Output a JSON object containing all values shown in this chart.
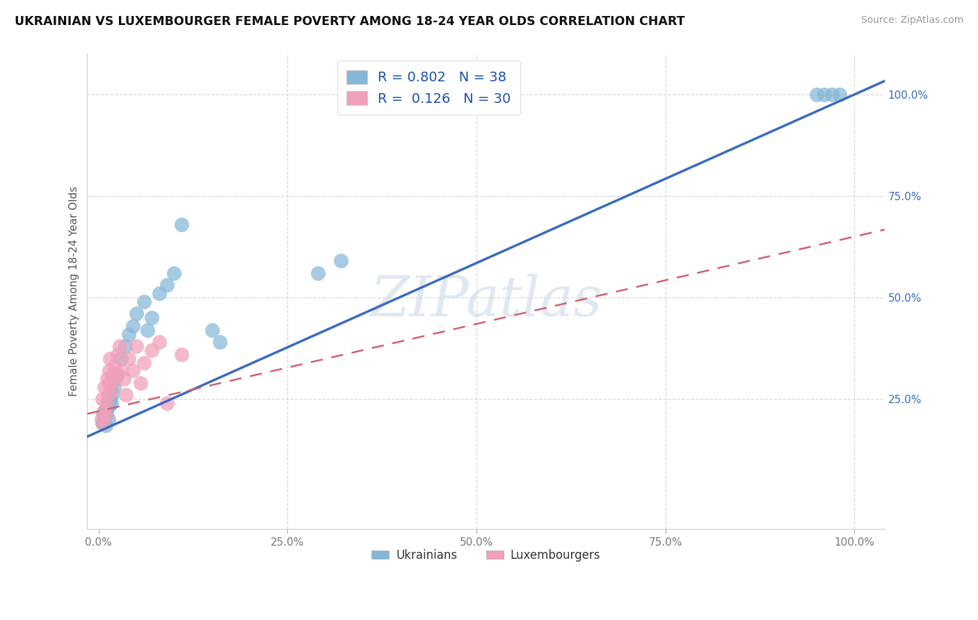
{
  "title": "UKRAINIAN VS LUXEMBOURGER FEMALE POVERTY AMONG 18-24 YEAR OLDS CORRELATION CHART",
  "source": "Source: ZipAtlas.com",
  "ylabel": "Female Poverty Among 18-24 Year Olds",
  "ukr_color": "#85b8d8",
  "lux_color": "#f0a0b8",
  "ukr_line_color": "#3a6abf",
  "lux_line_color": "#d06070",
  "background_color": "#ffffff",
  "grid_color": "#d8d8d8",
  "watermark_text": "ZIPatlas",
  "legend1_label1": "R = 0.802   N = 38",
  "legend1_label2": "R =  0.126   N = 30",
  "legend2_label1": "Ukrainians",
  "legend2_label2": "Luxembourgers",
  "ukr_x": [
    0.005,
    0.006,
    0.007,
    0.008,
    0.009,
    0.01,
    0.01,
    0.012,
    0.012,
    0.013,
    0.014,
    0.015,
    0.016,
    0.017,
    0.018,
    0.02,
    0.022,
    0.025,
    0.03,
    0.035,
    0.04,
    0.045,
    0.05,
    0.06,
    0.065,
    0.07,
    0.08,
    0.09,
    0.1,
    0.11,
    0.15,
    0.16,
    0.29,
    0.32,
    0.95,
    0.96,
    0.97,
    0.98
  ],
  "ukr_y": [
    0.19,
    0.21,
    0.195,
    0.22,
    0.185,
    0.215,
    0.225,
    0.23,
    0.245,
    0.2,
    0.235,
    0.25,
    0.27,
    0.24,
    0.26,
    0.28,
    0.3,
    0.31,
    0.35,
    0.38,
    0.41,
    0.43,
    0.46,
    0.49,
    0.42,
    0.45,
    0.51,
    0.53,
    0.56,
    0.68,
    0.42,
    0.39,
    0.56,
    0.59,
    1.0,
    1.0,
    1.0,
    1.0
  ],
  "lux_x": [
    0.004,
    0.005,
    0.006,
    0.007,
    0.008,
    0.009,
    0.01,
    0.011,
    0.012,
    0.013,
    0.014,
    0.015,
    0.016,
    0.018,
    0.02,
    0.022,
    0.025,
    0.028,
    0.03,
    0.033,
    0.036,
    0.04,
    0.045,
    0.05,
    0.055,
    0.06,
    0.07,
    0.08,
    0.09,
    0.11
  ],
  "lux_y": [
    0.2,
    0.25,
    0.19,
    0.22,
    0.28,
    0.21,
    0.24,
    0.3,
    0.26,
    0.29,
    0.32,
    0.35,
    0.27,
    0.31,
    0.33,
    0.3,
    0.36,
    0.38,
    0.32,
    0.3,
    0.26,
    0.35,
    0.32,
    0.38,
    0.29,
    0.34,
    0.37,
    0.39,
    0.24,
    0.36
  ],
  "ukr_line_x0": 0.0,
  "ukr_line_y0": 0.17,
  "ukr_line_x1": 1.0,
  "ukr_line_y1": 1.0,
  "lux_line_x0": 0.0,
  "lux_line_y0": 0.22,
  "lux_line_x1": 1.0,
  "lux_line_y1": 0.65,
  "xlim": [
    -0.015,
    1.04
  ],
  "ylim": [
    -0.07,
    1.1
  ],
  "ytick_vals": [
    0.25,
    0.5,
    0.75,
    1.0
  ],
  "ytick_labels": [
    "25.0%",
    "50.0%",
    "75.0%",
    "100.0%"
  ],
  "xtick_vals": [
    0.0,
    0.25,
    0.5,
    0.75,
    1.0
  ],
  "xtick_labels": [
    "0.0%",
    "25.0%",
    "50.0%",
    "75.0%",
    "100.0%"
  ]
}
